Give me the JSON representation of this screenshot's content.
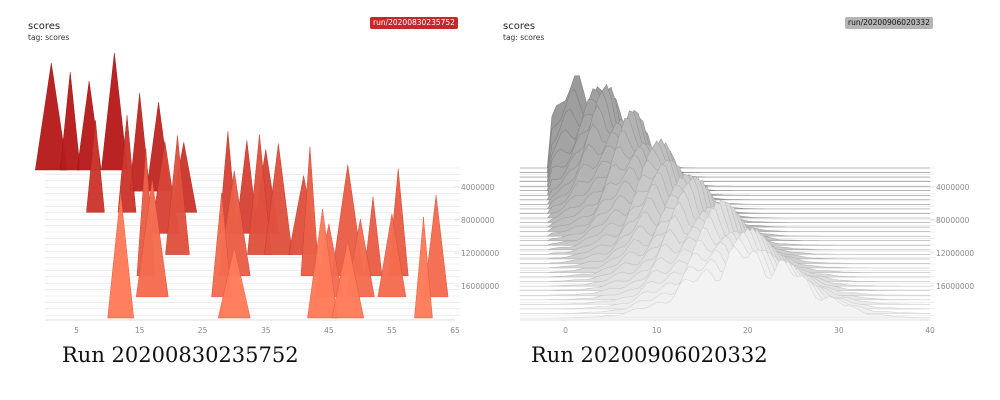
{
  "panels": [
    {
      "title": "scores",
      "tag": "tag: scores",
      "run_label": "run/20200830235752",
      "caption": "Run 20200830235752",
      "accent": "#c62828"
    },
    {
      "title": "scores",
      "tag": "tag: scores",
      "run_label": "run/20200906020332",
      "caption": "Run 20200906020332",
      "accent": "#9e9e9e"
    }
  ],
  "chart_data": [
    {
      "type": "area",
      "subtype": "histogram-offset",
      "color_scheme": "red",
      "xlim": [
        0,
        65
      ],
      "x_ticks": [
        5,
        15,
        25,
        35,
        45,
        55,
        65
      ],
      "y_ticks": [
        4000000,
        8000000,
        12000000,
        16000000
      ],
      "peaks_by_slice": [
        {
          "slice": 0,
          "x": [
            1,
            4,
            7,
            11
          ]
        },
        {
          "slice": 1,
          "x": [
            15,
            18
          ]
        },
        {
          "slice": 2,
          "x": [
            8,
            13,
            22
          ]
        },
        {
          "slice": 3,
          "x": [
            19,
            29,
            32,
            35
          ]
        },
        {
          "slice": 4,
          "x": [
            21,
            34,
            37,
            41
          ]
        },
        {
          "slice": 5,
          "x": [
            16,
            30,
            42,
            48,
            52,
            56
          ]
        },
        {
          "slice": 6,
          "x": [
            17,
            28,
            45,
            50,
            55,
            62
          ]
        },
        {
          "slice": 7,
          "x": [
            12,
            30,
            44,
            48,
            60
          ]
        }
      ]
    },
    {
      "type": "area",
      "subtype": "histogram-offset",
      "color_scheme": "gray",
      "xlim": [
        -5,
        40
      ],
      "x_ticks": [
        0,
        10,
        20,
        30,
        40
      ],
      "y_ticks": [
        4000000,
        8000000,
        12000000,
        16000000
      ],
      "distribution": "central peak drifting from x≈2 (early) to x≈20 (late)"
    }
  ]
}
